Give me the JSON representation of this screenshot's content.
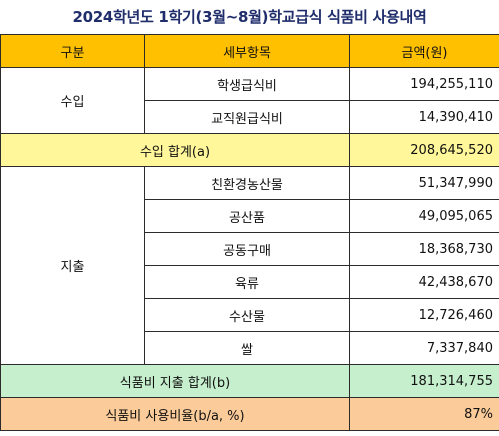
{
  "title": "2024학년도 1학기(3월~8월)학교급식 식품비 사용내역",
  "header": {
    "category": "구분",
    "item": "세부항목",
    "amount": "금액(원)"
  },
  "income": {
    "label": "수입",
    "rows": [
      {
        "item": "학생급식비",
        "amount": "194,255,110"
      },
      {
        "item": "교직원급식비",
        "amount": "14,390,410"
      }
    ],
    "total_label": "수입 합계(a)",
    "total_amount": "208,645,520"
  },
  "expense": {
    "label": "지출",
    "rows": [
      {
        "item": "친환경농산물",
        "amount": "51,347,990"
      },
      {
        "item": "공산품",
        "amount": "49,095,065"
      },
      {
        "item": "공동구매",
        "amount": "18,368,730"
      },
      {
        "item": "육류",
        "amount": "42,438,670"
      },
      {
        "item": "수산물",
        "amount": "12,726,460"
      },
      {
        "item": "쌀",
        "amount": "7,337,840"
      }
    ],
    "total_label": "식품비 지출 합계(b)",
    "total_amount": "181,314,755"
  },
  "ratio": {
    "label": "식품비 사용비율(b/a, %)",
    "value": "87%"
  },
  "colors": {
    "header_bg": "#ffc000",
    "income_total_bg": "#fff79a",
    "expense_total_bg": "#c6efce",
    "ratio_bg": "#fbcc9a",
    "title_color": "#1f2d6b"
  }
}
